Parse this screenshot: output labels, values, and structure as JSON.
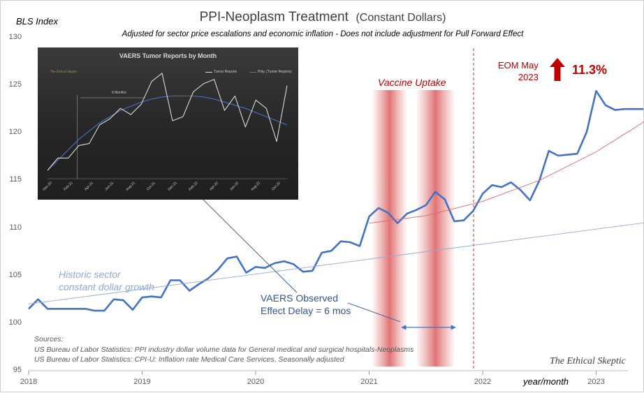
{
  "header": {
    "title": "PPI-Neoplasm Treatment",
    "title_suffix": "(Constant Dollars)",
    "subtitle": "Adjusted for sector price escalations and economic inflation - Does not include adjustment for Pull Forward Effect",
    "y_unit": "BLS Index",
    "x_unit": "year/month"
  },
  "chart_data": {
    "type": "line",
    "title": "PPI-Neoplasm Treatment (Constant Dollars)",
    "ylabel": "BLS Index",
    "xlabel": "year/month",
    "ylim": [
      95,
      130
    ],
    "xlim": [
      2018.0,
      2023.65
    ],
    "y_ticks": [
      95,
      100,
      105,
      110,
      115,
      120,
      125,
      130
    ],
    "x_ticks": [
      "2018",
      "2019",
      "2020",
      "2021",
      "2022",
      "2023"
    ],
    "series": [
      {
        "name": "PPI-Neoplasm Treatment (Constant Dollars)",
        "color": "#4472c4",
        "x": [
          2018.0,
          2018.083,
          2018.167,
          2018.25,
          2018.333,
          2018.417,
          2018.5,
          2018.583,
          2018.667,
          2018.75,
          2018.833,
          2018.917,
          2019.0,
          2019.083,
          2019.167,
          2019.25,
          2019.333,
          2019.417,
          2019.5,
          2019.583,
          2019.667,
          2019.75,
          2019.833,
          2019.917,
          2020.0,
          2020.083,
          2020.167,
          2020.25,
          2020.333,
          2020.417,
          2020.5,
          2020.583,
          2020.667,
          2020.75,
          2020.833,
          2020.917,
          2021.0,
          2021.083,
          2021.167,
          2021.25,
          2021.333,
          2021.417,
          2021.5,
          2021.583,
          2021.667,
          2021.75,
          2021.833,
          2021.917,
          2022.0,
          2022.083,
          2022.167,
          2022.25,
          2022.333,
          2022.417,
          2022.5,
          2022.583,
          2022.667,
          2022.75,
          2022.833,
          2022.917,
          2023.0,
          2023.083,
          2023.167,
          2023.25,
          2023.333,
          2023.417
        ],
        "values": [
          101.5,
          102.5,
          101.5,
          101.5,
          101.5,
          101.5,
          101.5,
          101.3,
          101.3,
          102.5,
          102.4,
          101.4,
          102.7,
          102.8,
          102.7,
          104.5,
          104.5,
          103.4,
          104.1,
          104.7,
          105.6,
          106.8,
          107.0,
          105.3,
          105.9,
          105.8,
          106.3,
          106.5,
          106.2,
          105.4,
          105.5,
          107.4,
          107.6,
          108.6,
          108.5,
          108.1,
          111.2,
          112.1,
          111.6,
          110.5,
          111.5,
          111.9,
          112.4,
          113.8,
          113.0,
          110.7,
          110.8,
          111.8,
          113.6,
          114.5,
          114.3,
          114.8,
          114.0,
          112.9,
          115.0,
          118.1,
          117.6,
          117.7,
          117.8,
          120.1,
          124.4,
          122.9,
          122.4,
          122.5,
          122.5,
          122.5
        ]
      },
      {
        "name": "Historic sector constant dollar growth",
        "color": "#8ea9db",
        "x": [
          2018.0,
          2023.65
        ],
        "values": [
          102.0,
          110.9
        ]
      },
      {
        "name": "Post-uptake trend",
        "color": "#e06666",
        "x": [
          2021.0,
          2021.5,
          2022.0,
          2022.5,
          2023.0,
          2023.4,
          2023.65
        ],
        "values": [
          110.5,
          111.3,
          112.8,
          115.0,
          118.0,
          121.0,
          123.2
        ]
      }
    ],
    "annotations": {
      "eom_label": "EOM May",
      "eom_year": "2023",
      "increase": "11.3%",
      "vaccine_uptake": "Vaccine Uptake",
      "vaccine_bands_x": [
        [
          2021.03,
          2021.33
        ],
        [
          2021.42,
          2021.75
        ]
      ],
      "dashed_line_x": 2021.92,
      "historic_line1": "Historic sector",
      "historic_line2": "constant dollar growth",
      "vaers_line1": "VAERS Observed",
      "vaers_line2": "Effect Delay = 6 mos"
    },
    "inset": {
      "type": "line",
      "title": "VAERS Tumor Reports by Month",
      "legend": [
        "Tumor Reports",
        "Poly. (Tumor Reports)"
      ],
      "annotation": "6 Months",
      "watermark": "The Ethical Skeptic",
      "categories": [
        "Dec 20",
        "Jan 21",
        "Feb 21",
        "Mar 21",
        "Apr 21",
        "May 21",
        "Jun 21",
        "Jul 21",
        "Aug 21",
        "Sep 21",
        "Oct 21",
        "Nov 21",
        "Dec 21",
        "Jan 22",
        "Feb 22",
        "Mar 22",
        "Apr 22",
        "May 22",
        "Jun 22",
        "Jul 22",
        "Aug 22",
        "Sep 22",
        "Oct 22",
        "Nov 22"
      ],
      "tick_labels": [
        "Dec-20",
        "Feb-21",
        "Apr-21",
        "Jun-21",
        "Aug-21",
        "Oct-21",
        "Dec-21",
        "Feb-22",
        "Apr-22",
        "Jun-22",
        "Aug-22",
        "Oct-22"
      ],
      "values": [
        4,
        10,
        10,
        16,
        17,
        26,
        29,
        34,
        31,
        36,
        47,
        51,
        28,
        30,
        42,
        46,
        48,
        33,
        40,
        25,
        38,
        34,
        18,
        45
      ],
      "trend": [
        4,
        9,
        14,
        19,
        23,
        27,
        30,
        33,
        35,
        37,
        38.5,
        39.5,
        40,
        40,
        40,
        39.5,
        38.5,
        37,
        35.5,
        34,
        32,
        30,
        28,
        26
      ],
      "ylim": [
        0,
        55
      ]
    }
  },
  "sources": {
    "heading": "Sources:",
    "line1": "US Bureau of Labor Statistics: PPI industry dollar volume data for General medical and surgical hospitals-Neoplasms",
    "line2": "US Bureau of Labor Statistics: CPI-U: Inflation rate Medical Care Services, Seasonally adjusted"
  },
  "watermark": "The Ethical Skeptic"
}
